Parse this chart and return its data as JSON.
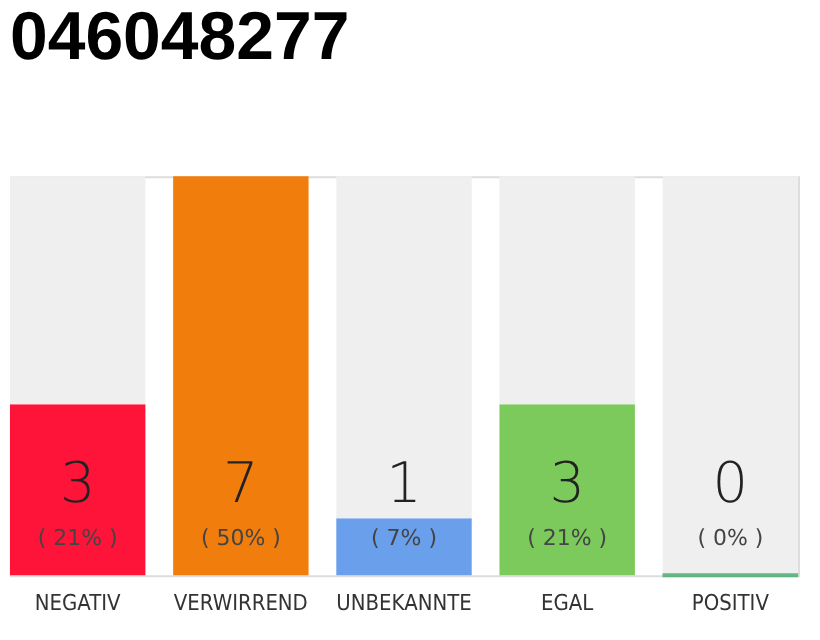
{
  "chart_data": {
    "type": "bar",
    "title": "046048277",
    "stacked": true,
    "tick_labels": "x",
    "categories": [
      "NEGATIV",
      "VERWIRREND",
      "UNBEKANNTE",
      "EGAL",
      "POSITIV"
    ],
    "series": [
      {
        "colors": [
          "#ff1439",
          "#f07d0c",
          "#6a9fec",
          "#7cc95c",
          "#2ca05a"
        ],
        "values": [
          3,
          7,
          1,
          3,
          0
        ],
        "value_labels": [
          "3",
          "7",
          "1",
          "3",
          "0"
        ]
      },
      {
        "color": "#efefef",
        "values": [
          4,
          0,
          6,
          4,
          7
        ]
      }
    ],
    "annotations": [
      "( 21% )",
      "( 50% )",
      "( 7% )",
      "( 21% )",
      "( 0% )"
    ]
  }
}
